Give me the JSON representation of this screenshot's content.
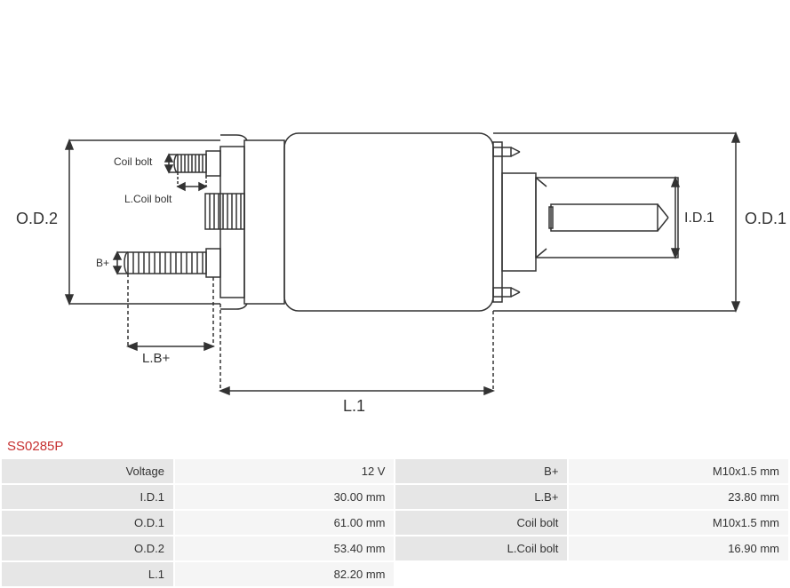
{
  "part_number": "SS0285P",
  "diagram": {
    "labels": {
      "od2": "O.D.2",
      "od1": "O.D.1",
      "id1": "I.D.1",
      "l1": "L.1",
      "lbplus": "L.B+",
      "bplus": "B+",
      "coilbolt": "Coil bolt",
      "lcoilbolt": "L.Coil bolt"
    },
    "stroke": "#333333",
    "stroke_width": 1.5,
    "label_fontsize": 16,
    "small_label_fontsize": 12
  },
  "specs": {
    "rows": [
      {
        "l_label": "Voltage",
        "l_value": "12 V",
        "r_label": "B+",
        "r_value": "M10x1.5 mm"
      },
      {
        "l_label": "I.D.1",
        "l_value": "30.00 mm",
        "r_label": "L.B+",
        "r_value": "23.80 mm"
      },
      {
        "l_label": "O.D.1",
        "l_value": "61.00 mm",
        "r_label": "Coil bolt",
        "r_value": "M10x1.5 mm"
      },
      {
        "l_label": "O.D.2",
        "l_value": "53.40 mm",
        "r_label": "L.Coil bolt",
        "r_value": "16.90 mm"
      },
      {
        "l_label": "L.1",
        "l_value": "82.20 mm",
        "r_label": "",
        "r_value": ""
      }
    ]
  }
}
